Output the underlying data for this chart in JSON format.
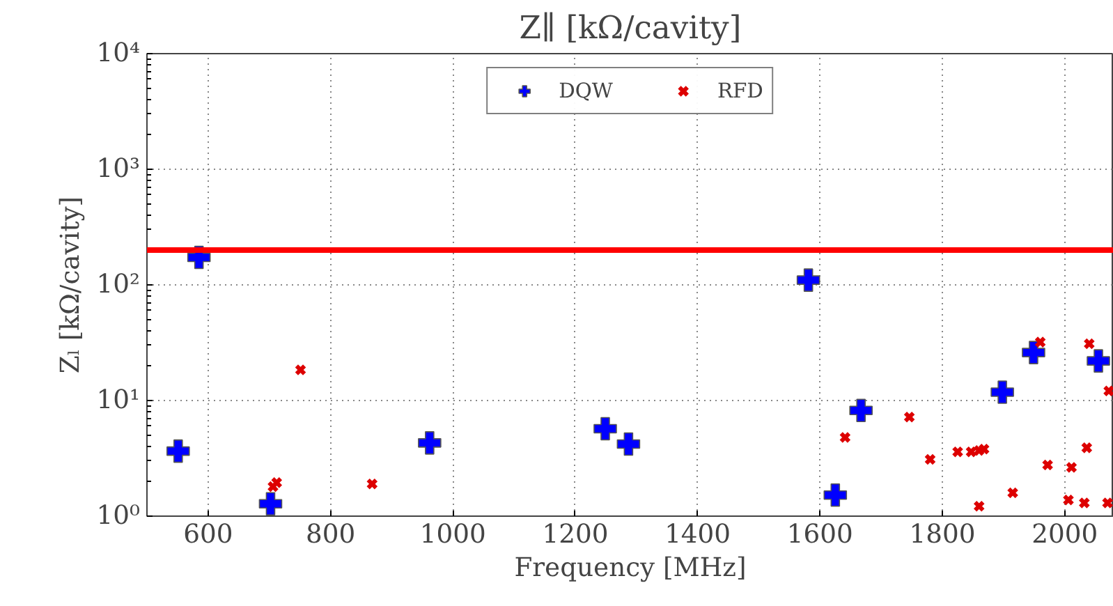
{
  "chart_data": {
    "type": "scatter",
    "title": "Z∥ [kΩ/cavity]",
    "xlabel": "Frequency [MHz]",
    "ylabel": "Zₗ [kΩ/cavity]",
    "log": "y",
    "grid": true,
    "legend": "top",
    "xlim": [
      500,
      2080
    ],
    "ylim": [
      1,
      10000
    ],
    "xticks": [
      600,
      800,
      1000,
      1200,
      1400,
      1600,
      1800,
      2000
    ],
    "yticks": [
      {
        "value": 1,
        "label": "10⁰"
      },
      {
        "value": 10,
        "label": "10¹"
      },
      {
        "value": 100,
        "label": "10²"
      },
      {
        "value": 1000,
        "label": "10³"
      },
      {
        "value": 10000,
        "label": "10⁴"
      }
    ],
    "ref_lines": [
      {
        "axis": "y",
        "value": 200,
        "color": "#ff0000",
        "line_style": "solid"
      }
    ],
    "series": [
      {
        "name": "DQW",
        "color": "#0000ff",
        "marker": "cross",
        "x": [
          551,
          585,
          702,
          962,
          1249,
          1287,
          1581,
          1625,
          1667,
          1898,
          1949,
          2055
        ],
        "values": [
          3.65,
          173,
          1.28,
          4.3,
          5.7,
          4.2,
          110,
          1.52,
          8.2,
          11.8,
          26,
          22
        ]
      },
      {
        "name": "RFD",
        "color": "#dd0000",
        "marker": "x",
        "x": [
          706,
          712,
          751,
          868,
          1641,
          1746,
          1780,
          1825,
          1847,
          1860,
          1868,
          1860,
          1915,
          1960,
          1972,
          2006,
          2011,
          2032,
          2036,
          2040,
          2070,
          2072
        ],
        "values": [
          1.8,
          1.95,
          18.4,
          1.9,
          4.8,
          7.2,
          3.1,
          3.6,
          3.6,
          3.7,
          3.8,
          1.22,
          1.59,
          32,
          2.77,
          1.38,
          2.64,
          1.3,
          3.9,
          31,
          1.3,
          12.1
        ]
      }
    ]
  }
}
